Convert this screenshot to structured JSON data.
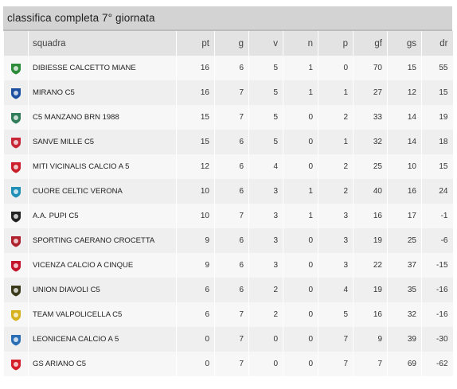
{
  "title": "classifica completa 7° giornata",
  "columns": {
    "team": "squadra",
    "pt": "pt",
    "g": "g",
    "v": "v",
    "n": "n",
    "p": "p",
    "gf": "gf",
    "gs": "gs",
    "dr": "dr"
  },
  "rows": [
    {
      "team": "DIBIESSE CALCETTO MIANE",
      "logo": "dibiesse-logo",
      "color": "#2e8b3a",
      "pt": "16",
      "g": "6",
      "v": "5",
      "n": "1",
      "p": "0",
      "gf": "70",
      "gs": "15",
      "dr": "55"
    },
    {
      "team": "MIRANO C5",
      "logo": "mirano-logo",
      "color": "#1c4fa0",
      "pt": "16",
      "g": "7",
      "v": "5",
      "n": "1",
      "p": "1",
      "gf": "27",
      "gs": "12",
      "dr": "15"
    },
    {
      "team": "C5 MANZANO BRN 1988",
      "logo": "manzano-logo",
      "color": "#2f7d5a",
      "pt": "15",
      "g": "7",
      "v": "5",
      "n": "0",
      "p": "2",
      "gf": "33",
      "gs": "14",
      "dr": "19"
    },
    {
      "team": "SANVE MILLE C5",
      "logo": "sanve-logo",
      "color": "#c62838",
      "pt": "15",
      "g": "6",
      "v": "5",
      "n": "0",
      "p": "1",
      "gf": "32",
      "gs": "14",
      "dr": "18"
    },
    {
      "team": "MITI VICINALIS CALCIO A 5",
      "logo": "miti-logo",
      "color": "#c9202b",
      "pt": "12",
      "g": "6",
      "v": "4",
      "n": "0",
      "p": "2",
      "gf": "25",
      "gs": "10",
      "dr": "15"
    },
    {
      "team": "CUORE CELTIC VERONA",
      "logo": "cuore-logo",
      "color": "#1f8fb8",
      "pt": "10",
      "g": "6",
      "v": "3",
      "n": "1",
      "p": "2",
      "gf": "40",
      "gs": "16",
      "dr": "24"
    },
    {
      "team": "A.A. PUPI C5",
      "logo": "pupi-logo",
      "color": "#222222",
      "pt": "10",
      "g": "7",
      "v": "3",
      "n": "1",
      "p": "3",
      "gf": "16",
      "gs": "17",
      "dr": "-1"
    },
    {
      "team": "SPORTING CAERANO CROCETTA",
      "logo": "sporting-logo",
      "color": "#b0212e",
      "pt": "9",
      "g": "6",
      "v": "3",
      "n": "0",
      "p": "3",
      "gf": "19",
      "gs": "25",
      "dr": "-6"
    },
    {
      "team": "VICENZA CALCIO A CINQUE",
      "logo": "vicenza-logo",
      "color": "#c3162c",
      "pt": "9",
      "g": "6",
      "v": "3",
      "n": "0",
      "p": "3",
      "gf": "22",
      "gs": "37",
      "dr": "-15"
    },
    {
      "team": "UNION DIAVOLI C5",
      "logo": "diavoli-logo",
      "color": "#3a3a1a",
      "pt": "6",
      "g": "6",
      "v": "2",
      "n": "0",
      "p": "4",
      "gf": "19",
      "gs": "35",
      "dr": "-16"
    },
    {
      "team": "TEAM VALPOLICELLA C5",
      "logo": "valpolicella-logo",
      "color": "#d6b21c",
      "pt": "6",
      "g": "7",
      "v": "2",
      "n": "0",
      "p": "5",
      "gf": "16",
      "gs": "32",
      "dr": "-16"
    },
    {
      "team": "LEONICENA CALCIO A 5",
      "logo": "leonicena-logo",
      "color": "#2a6fb5",
      "pt": "0",
      "g": "7",
      "v": "0",
      "n": "0",
      "p": "7",
      "gf": "9",
      "gs": "39",
      "dr": "-30"
    },
    {
      "team": "GS ARIANO C5",
      "logo": "ariano-logo",
      "color": "#d4202a",
      "pt": "0",
      "g": "7",
      "v": "0",
      "n": "0",
      "p": "7",
      "gf": "7",
      "gs": "69",
      "dr": "-62"
    }
  ]
}
